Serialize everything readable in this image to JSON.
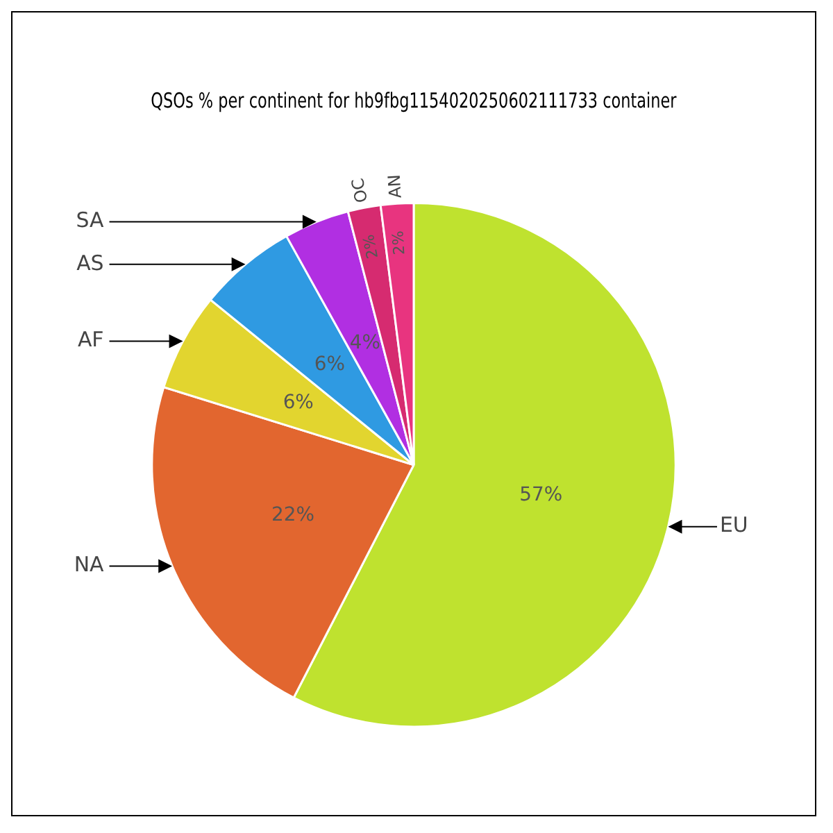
{
  "chart_data": {
    "type": "pie",
    "title": "QSOs % per continent for hb9fbg1154020250602111733 container",
    "categories": [
      "EU",
      "NA",
      "AF",
      "AS",
      "SA",
      "OC",
      "AN"
    ],
    "values": [
      57,
      22,
      6,
      6,
      4,
      2,
      2
    ],
    "value_labels": [
      "57%",
      "22%",
      "6%",
      "6%",
      "4%",
      "2%",
      "2%"
    ],
    "colors": [
      "#bfe22f",
      "#e2662f",
      "#e2d52f",
      "#2f9ae2",
      "#b12fe2",
      "#d62b70",
      "#e8347f"
    ],
    "legend": false
  }
}
